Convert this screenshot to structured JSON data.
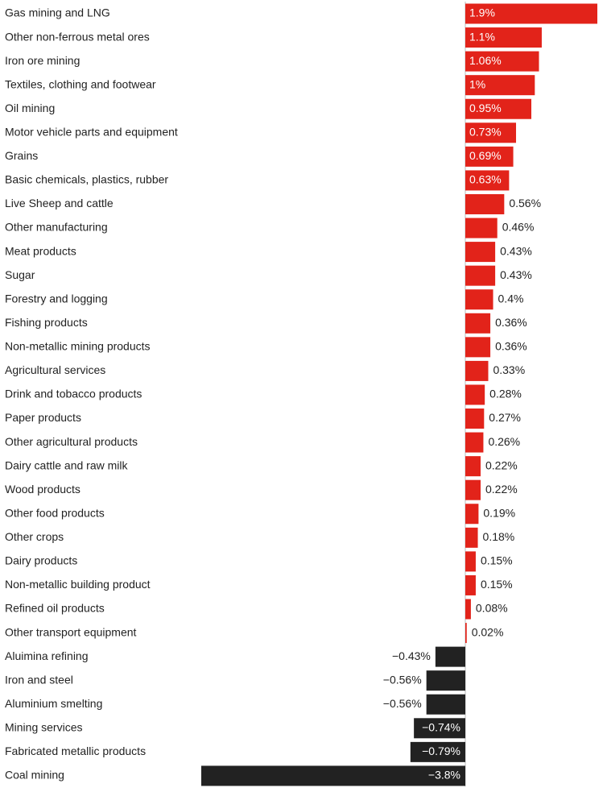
{
  "chart_data": {
    "type": "bar",
    "orientation": "horizontal",
    "categories": [
      "Gas mining and LNG",
      "Other non-ferrous metal ores",
      "Iron ore mining",
      "Textiles, clothing and footwear",
      "Oil mining",
      "Motor vehicle parts and equipment",
      "Grains",
      "Basic chemicals, plastics, rubber",
      "Live Sheep and cattle",
      "Other manufacturing",
      "Meat products",
      "Sugar",
      "Forestry and logging",
      "Fishing products",
      "Non-metallic mining products",
      "Agricultural services",
      "Drink and tobacco products",
      "Paper products",
      "Other agricultural products",
      "Dairy cattle and raw milk",
      "Wood products",
      "Other food products",
      "Other crops",
      "Dairy products",
      "Non-metallic building product",
      "Refined oil products",
      "Other transport equipment",
      "Aluimina refining",
      "Iron and steel",
      "Aluminium smelting",
      "Mining services",
      "Fabricated metallic products",
      "Coal mining"
    ],
    "values": [
      1.9,
      1.1,
      1.06,
      1,
      0.95,
      0.73,
      0.69,
      0.63,
      0.56,
      0.46,
      0.43,
      0.43,
      0.4,
      0.36,
      0.36,
      0.33,
      0.28,
      0.27,
      0.26,
      0.22,
      0.22,
      0.19,
      0.18,
      0.15,
      0.15,
      0.08,
      0.02,
      -0.43,
      -0.56,
      -0.56,
      -0.74,
      -0.79,
      -3.8
    ],
    "value_labels": [
      "1.9%",
      "1.1%",
      "1.06%",
      "1%",
      "0.95%",
      "0.73%",
      "0.69%",
      "0.63%",
      "0.56%",
      "0.46%",
      "0.43%",
      "0.43%",
      "0.4%",
      "0.36%",
      "0.36%",
      "0.33%",
      "0.28%",
      "0.27%",
      "0.26%",
      "0.22%",
      "0.22%",
      "0.19%",
      "0.18%",
      "0.15%",
      "0.15%",
      "0.08%",
      "0.02%",
      "−0.43%",
      "−0.56%",
      "−0.56%",
      "−0.74%",
      "−0.79%",
      "−3.8%"
    ],
    "positive_color": "#e2231a",
    "negative_color": "#222222"
  }
}
